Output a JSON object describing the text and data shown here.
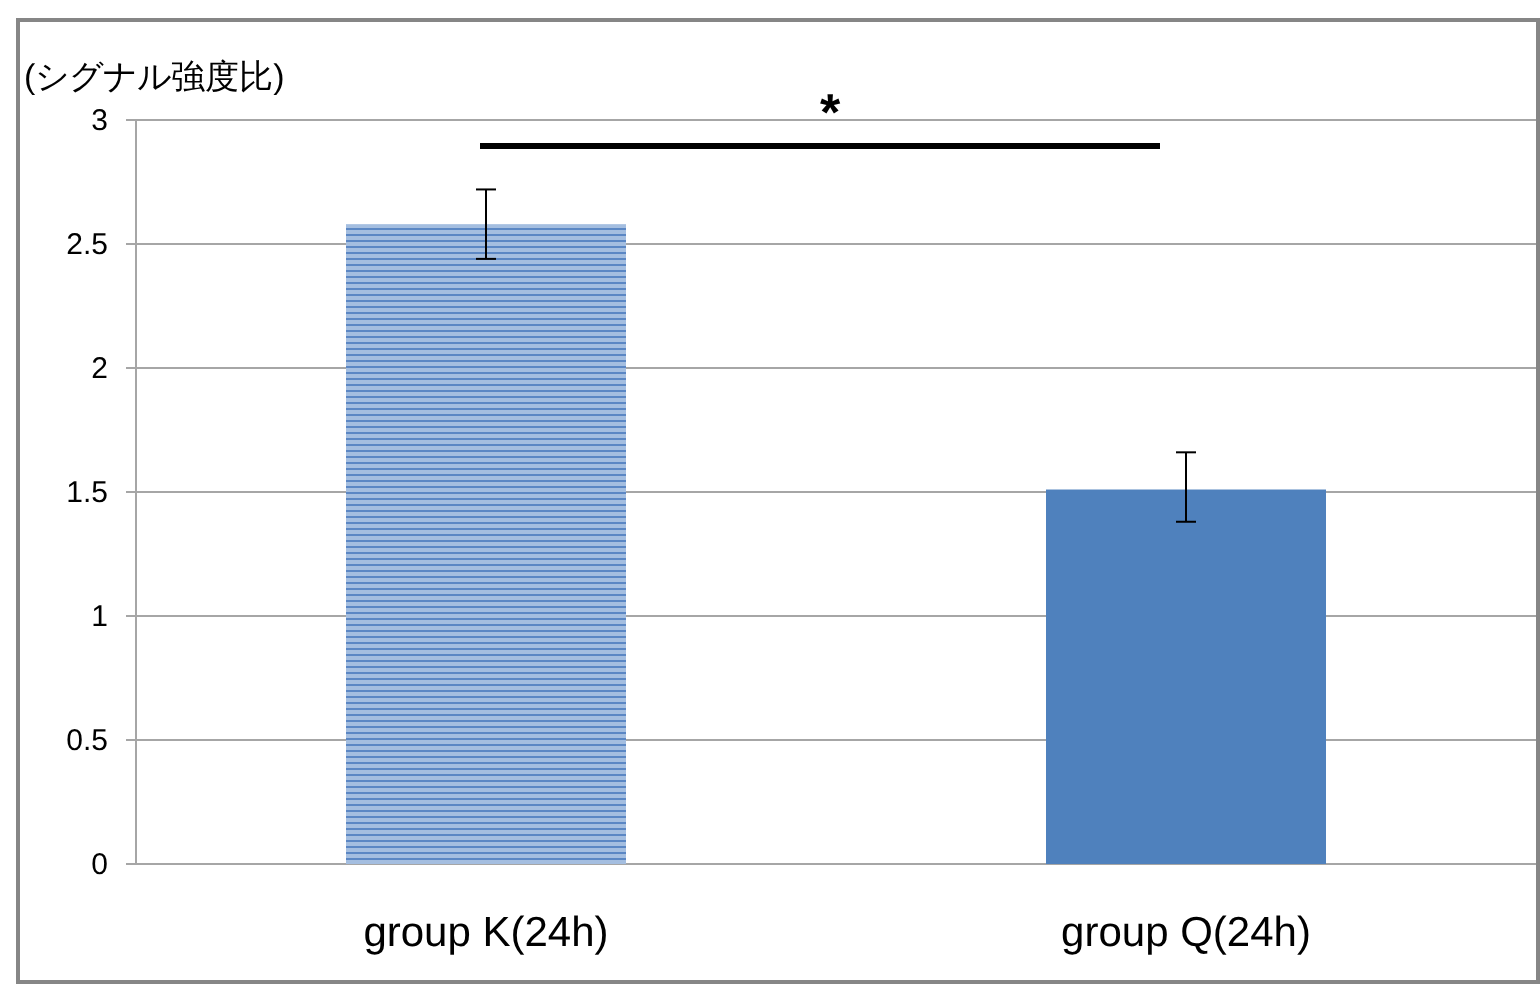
{
  "chart_data": {
    "type": "bar",
    "ylabel": "(シグナル強度比)",
    "categories": [
      "group K(24h)",
      "group Q(24h)"
    ],
    "values": [
      2.58,
      1.51
    ],
    "errors": [
      [
        2.44,
        2.72
      ],
      [
        1.38,
        1.66
      ]
    ],
    "colors": [
      "#a4bee0",
      "#4f81bd"
    ],
    "ylim": [
      0,
      3
    ],
    "yticks": [
      0,
      0.5,
      1,
      1.5,
      2,
      2.5,
      3
    ],
    "grid": "y",
    "annotations": [
      "*"
    ]
  }
}
